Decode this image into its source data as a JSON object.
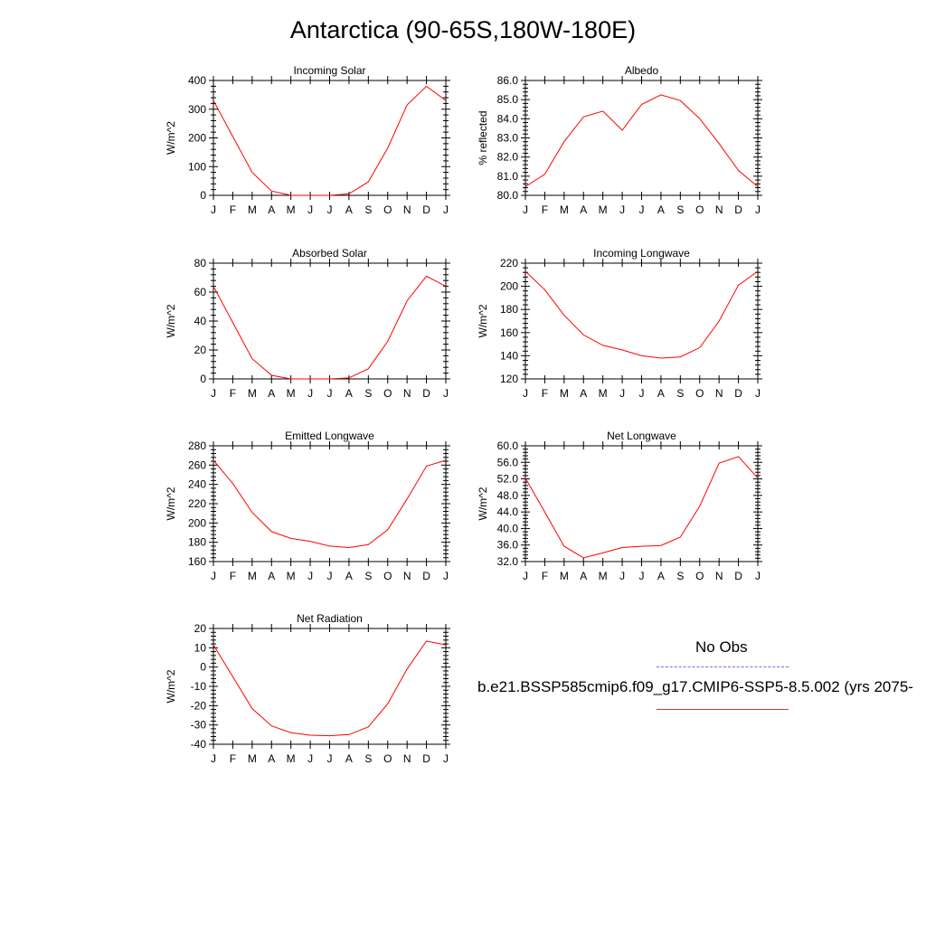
{
  "title": "Antarctica (90-65S,180W-180E)",
  "colors": {
    "model_line": "#ff0000",
    "obs_line": "#6b73e0",
    "axis": "#000000"
  },
  "legend": {
    "obs_label": "No Obs",
    "case_label": "b.e21.BSSP585cmip6.f09_g17.CMIP6-SSP5-8.5.002 (yrs 2075-"
  },
  "chart_data": [
    {
      "id": "incoming-solar",
      "type": "line",
      "title": "Incoming Solar",
      "ylabel": "W/m^2",
      "ylim": [
        0,
        400
      ],
      "yticks": [
        0,
        100,
        200,
        300,
        400
      ],
      "ytick_labels": [
        "0",
        "100",
        "200",
        "300",
        "400"
      ],
      "categories": [
        "J",
        "F",
        "M",
        "A",
        "M",
        "J",
        "J",
        "A",
        "S",
        "O",
        "N",
        "D",
        "J"
      ],
      "series": [
        {
          "values": [
            330,
            205,
            80,
            15,
            0,
            0,
            0,
            5,
            47,
            165,
            315,
            380,
            330
          ]
        }
      ]
    },
    {
      "id": "albedo",
      "type": "line",
      "title": "Albedo",
      "ylabel": "% reflected",
      "ylim": [
        80,
        86
      ],
      "yticks": [
        80,
        81,
        82,
        83,
        84,
        85,
        86
      ],
      "ytick_labels": [
        "80.0",
        "81.0",
        "82.0",
        "83.0",
        "84.0",
        "85.0",
        "86.0"
      ],
      "categories": [
        "J",
        "F",
        "M",
        "A",
        "M",
        "J",
        "J",
        "A",
        "S",
        "O",
        "N",
        "D",
        "J"
      ],
      "series": [
        {
          "values": [
            80.45,
            81.1,
            82.8,
            84.1,
            84.4,
            83.4,
            84.75,
            85.25,
            84.95,
            84.0,
            82.7,
            81.3,
            80.45
          ]
        }
      ]
    },
    {
      "id": "absorbed-solar",
      "type": "line",
      "title": "Absorbed Solar",
      "ylabel": "W/m^2",
      "ylim": [
        0,
        80
      ],
      "yticks": [
        0,
        20,
        40,
        60,
        80
      ],
      "ytick_labels": [
        "0",
        "20",
        "40",
        "60",
        "80"
      ],
      "categories": [
        "J",
        "F",
        "M",
        "A",
        "M",
        "J",
        "J",
        "A",
        "S",
        "O",
        "N",
        "D",
        "J"
      ],
      "series": [
        {
          "values": [
            64,
            39,
            14,
            2.5,
            0,
            0,
            0,
            0.7,
            7,
            26,
            54,
            71,
            64
          ]
        }
      ]
    },
    {
      "id": "incoming-longwave",
      "type": "line",
      "title": "Incoming Longwave",
      "ylabel": "W/m^2",
      "ylim": [
        120,
        220
      ],
      "yticks": [
        120,
        140,
        160,
        180,
        200,
        220
      ],
      "ytick_labels": [
        "120",
        "140",
        "160",
        "180",
        "200",
        "220"
      ],
      "categories": [
        "J",
        "F",
        "M",
        "A",
        "M",
        "J",
        "J",
        "A",
        "S",
        "O",
        "N",
        "D",
        "J"
      ],
      "series": [
        {
          "values": [
            213,
            197,
            175,
            158,
            149,
            145,
            140,
            138,
            139,
            147,
            170,
            201,
            213
          ]
        }
      ]
    },
    {
      "id": "emitted-longwave",
      "type": "line",
      "title": "Emitted Longwave",
      "ylabel": "W/m^2",
      "ylim": [
        160,
        280
      ],
      "yticks": [
        160,
        180,
        200,
        220,
        240,
        260,
        280
      ],
      "ytick_labels": [
        "160",
        "180",
        "200",
        "220",
        "240",
        "260",
        "280"
      ],
      "categories": [
        "J",
        "F",
        "M",
        "A",
        "M",
        "J",
        "J",
        "A",
        "S",
        "O",
        "N",
        "D",
        "J"
      ],
      "series": [
        {
          "values": [
            265,
            241,
            211,
            191,
            184,
            181,
            176,
            174.5,
            177.5,
            193,
            225,
            259,
            265
          ]
        }
      ]
    },
    {
      "id": "net-longwave",
      "type": "line",
      "title": "Net Longwave",
      "ylabel": "W/m^2",
      "ylim": [
        32,
        60
      ],
      "yticks": [
        32,
        36,
        40,
        44,
        48,
        52,
        56,
        60
      ],
      "ytick_labels": [
        "32.0",
        "36.0",
        "40.0",
        "44.0",
        "48.0",
        "52.0",
        "56.0",
        "60.0"
      ],
      "categories": [
        "J",
        "F",
        "M",
        "A",
        "M",
        "J",
        "J",
        "A",
        "S",
        "O",
        "N",
        "D",
        "J"
      ],
      "series": [
        {
          "values": [
            52.2,
            44,
            35.7,
            32.9,
            34.1,
            35.4,
            35.7,
            35.9,
            37.9,
            45.4,
            55.8,
            57.4,
            52.2
          ]
        }
      ]
    },
    {
      "id": "net-radiation",
      "type": "line",
      "title": "Net Radiation",
      "ylabel": "W/m^2",
      "ylim": [
        -40,
        20
      ],
      "yticks": [
        -40,
        -30,
        -20,
        -10,
        0,
        10,
        20
      ],
      "ytick_labels": [
        "-40",
        "-30",
        "-20",
        "-10",
        "0",
        "10",
        "20"
      ],
      "categories": [
        "J",
        "F",
        "M",
        "A",
        "M",
        "J",
        "J",
        "A",
        "S",
        "O",
        "N",
        "D",
        "J"
      ],
      "series": [
        {
          "values": [
            11.5,
            -5,
            -21.5,
            -30.5,
            -34,
            -35.3,
            -35.6,
            -35,
            -31,
            -19,
            -1,
            13.5,
            11.5
          ]
        }
      ]
    }
  ]
}
